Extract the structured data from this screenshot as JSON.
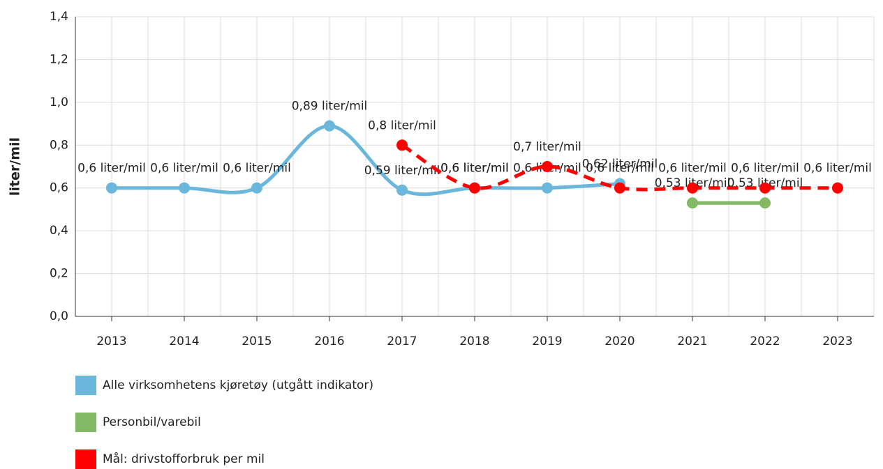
{
  "chart_data": {
    "type": "line",
    "y_label": "liter/mil",
    "categories": [
      "2013",
      "2014",
      "2015",
      "2016",
      "2017",
      "2018",
      "2019",
      "2020",
      "2021",
      "2022",
      "2023"
    ],
    "series": [
      {
        "name": "Alle virksomhetens kjøretøy (utgått indikator)",
        "color": "#6bb7dc",
        "dashed": false,
        "values": [
          0.6,
          0.6,
          0.6,
          0.89,
          0.59,
          0.6,
          0.6,
          0.62,
          null,
          null,
          null
        ],
        "value_labels": [
          "0,6 liter/mil",
          "0,6 liter/mil",
          "0,6 liter/mil",
          "0,89 liter/mil",
          "0,59 liter/mil",
          "0,6 liter/mil",
          "0,6 liter/mil",
          "0,62 liter/mil",
          null,
          null,
          null
        ]
      },
      {
        "name": "Personbil/varebil",
        "color": "#82b964",
        "dashed": false,
        "values": [
          null,
          null,
          null,
          null,
          null,
          null,
          null,
          null,
          0.53,
          0.53,
          null
        ],
        "value_labels": [
          null,
          null,
          null,
          null,
          null,
          null,
          null,
          null,
          "0,53 liter/mil",
          "0,53 liter/mil",
          null
        ]
      },
      {
        "name": "Mål: drivstofforbruk per mil",
        "color": "#ff0000",
        "dashed": true,
        "values": [
          null,
          null,
          null,
          null,
          0.8,
          0.6,
          0.7,
          0.6,
          0.6,
          0.6,
          0.6
        ],
        "value_labels": [
          null,
          null,
          null,
          null,
          "0,8 liter/mil",
          "0,6 liter/mil",
          "0,7 liter/mil",
          "0,6 liter/mil",
          "0,6 liter/mil",
          "0,6 liter/mil",
          "0,6 liter/mil"
        ]
      }
    ],
    "ylim": [
      0,
      1.4
    ],
    "yticks": [
      {
        "value": 0,
        "label": "0,0"
      },
      {
        "value": 0.2,
        "label": "0,2"
      },
      {
        "value": 0.4,
        "label": "0,4"
      },
      {
        "value": 0.6,
        "label": "0,6"
      },
      {
        "value": 0.8,
        "label": "0,8"
      },
      {
        "value": 1.0,
        "label": "1,0"
      },
      {
        "value": 1.2,
        "label": "1,2"
      },
      {
        "value": 1.4,
        "label": "1,4"
      }
    ],
    "grid": true
  }
}
